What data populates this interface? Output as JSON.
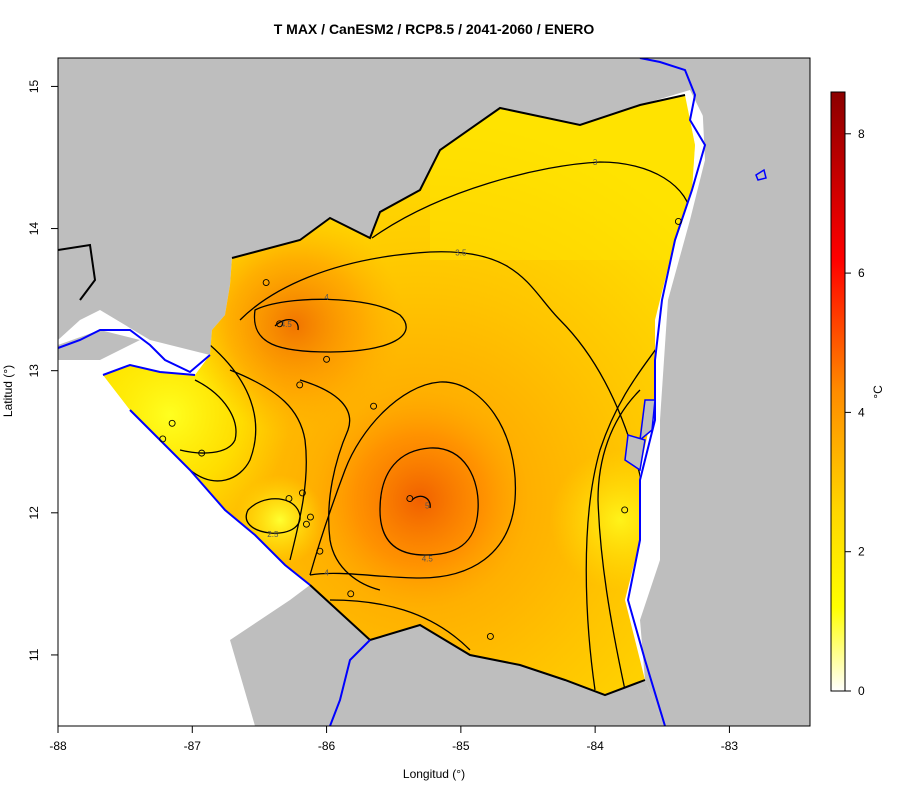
{
  "title": "T MAX / CanESM2 / RCP8.5 / 2041-2060 / ENERO",
  "x_axis": {
    "label": "Longitud (°)",
    "ticks": [
      -88,
      -87,
      -86,
      -85,
      -84,
      -83
    ],
    "range": [
      -88,
      -82.4
    ]
  },
  "y_axis": {
    "label": "Latitud (°)",
    "ticks": [
      11,
      12,
      13,
      14,
      15
    ],
    "range": [
      10.5,
      15.2
    ]
  },
  "colorbar": {
    "unit": "°C",
    "range": [
      0,
      8.6
    ],
    "ticks": [
      0,
      2,
      4,
      6,
      8
    ],
    "colors": [
      "#ffffff",
      "#ffff00",
      "#ff8c00",
      "#ff0000",
      "#8b0000"
    ]
  },
  "colors": {
    "land_mask": "#bebebe",
    "coastline": "#0000ff",
    "border": "#000000",
    "station": "#000000"
  },
  "contour_labels": [
    {
      "text": "3",
      "lon": -84.0,
      "lat": 14.47
    },
    {
      "text": "3.5",
      "lon": -85.0,
      "lat": 13.83
    },
    {
      "text": "4",
      "lon": -86.0,
      "lat": 13.52
    },
    {
      "text": "4.5",
      "lon": -86.3,
      "lat": 13.33
    },
    {
      "text": "2.5",
      "lon": -86.4,
      "lat": 11.85
    },
    {
      "text": "5",
      "lon": -85.25,
      "lat": 12.05
    },
    {
      "text": "4.5",
      "lon": -85.25,
      "lat": 11.68
    },
    {
      "text": "4",
      "lon": -86.0,
      "lat": 11.58
    }
  ],
  "stations": [
    {
      "lon": -86.45,
      "lat": 13.62
    },
    {
      "lon": -86.35,
      "lat": 13.33
    },
    {
      "lon": -86.0,
      "lat": 13.08
    },
    {
      "lon": -86.2,
      "lat": 12.9
    },
    {
      "lon": -85.65,
      "lat": 12.75
    },
    {
      "lon": -87.15,
      "lat": 12.63
    },
    {
      "lon": -87.22,
      "lat": 12.52
    },
    {
      "lon": -86.93,
      "lat": 12.42
    },
    {
      "lon": -86.18,
      "lat": 12.14
    },
    {
      "lon": -86.28,
      "lat": 12.1
    },
    {
      "lon": -85.38,
      "lat": 12.1
    },
    {
      "lon": -86.12,
      "lat": 11.97
    },
    {
      "lon": -86.15,
      "lat": 11.92
    },
    {
      "lon": -86.05,
      "lat": 11.73
    },
    {
      "lon": -85.82,
      "lat": 11.43
    },
    {
      "lon": -84.78,
      "lat": 11.13
    },
    {
      "lon": -83.78,
      "lat": 12.02
    },
    {
      "lon": -83.38,
      "lat": 14.05
    }
  ]
}
